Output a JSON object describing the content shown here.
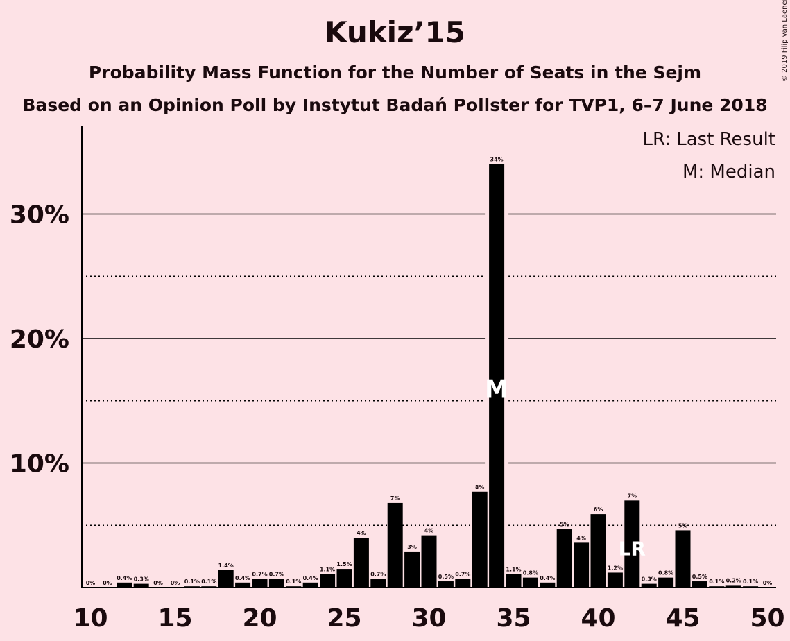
{
  "chart_data": {
    "type": "bar",
    "title": "Kukiz’15",
    "subtitle": "Probability Mass Function for the Number of Seats in the Sejm",
    "subtitle2": "Based on an Opinion Poll by Instytut Badań Pollster for TVP1, 6–7 June 2018",
    "copyright": "© 2019 Filip van Laenen",
    "legend": [
      "LR: Last Result",
      "M: Median"
    ],
    "legend_position": "top-right",
    "x": [
      10,
      11,
      12,
      13,
      14,
      15,
      16,
      17,
      18,
      19,
      20,
      21,
      22,
      23,
      24,
      25,
      26,
      27,
      28,
      29,
      30,
      31,
      32,
      33,
      34,
      35,
      36,
      37,
      38,
      39,
      40,
      41,
      42,
      43,
      44,
      45,
      46,
      47,
      48,
      49,
      50
    ],
    "values": [
      0,
      0,
      0.4,
      0.3,
      0,
      0,
      0.1,
      0.1,
      1.4,
      0.4,
      0.7,
      0.7,
      0.1,
      0.4,
      1.1,
      1.5,
      4,
      0.7,
      6.8,
      2.9,
      4.2,
      0.5,
      0.7,
      7.7,
      34,
      1.1,
      0.8,
      0.4,
      4.7,
      3.6,
      5.9,
      1.2,
      7,
      0.3,
      0.8,
      4.6,
      0.5,
      0.1,
      0.2,
      0.1,
      0
    ],
    "labels": [
      "0%",
      "0%",
      "0.4%",
      "0.3%",
      "0%",
      "0%",
      "0.1%",
      "0.1%",
      "1.4%",
      "0.4%",
      "0.7%",
      "0.7%",
      "0.1%",
      "0.4%",
      "1.1%",
      "1.5%",
      "4%",
      "0.7%",
      "7%",
      "3%",
      "4%",
      "0.5%",
      "0.7%",
      "8%",
      "34%",
      "1.1%",
      "0.8%",
      "0.4%",
      "5%",
      "4%",
      "6%",
      "1.2%",
      "7%",
      "0.3%",
      "0.8%",
      "5%",
      "0.5%",
      "0.1%",
      "0.2%",
      "0.1%",
      "0%"
    ],
    "xticks": [
      10,
      15,
      20,
      25,
      30,
      35,
      40,
      45,
      50
    ],
    "ylim": [
      0,
      37
    ],
    "yticks_major": [
      10,
      20,
      30
    ],
    "ytick_labels": [
      "10%",
      "20%",
      "30%"
    ],
    "yticks_minor": [
      5,
      15,
      25
    ],
    "median_seat": 34,
    "median_marker": "M",
    "last_result_seat": 42,
    "last_result_marker": "LR",
    "bar_color": "#000000",
    "background": "#fde2e6"
  }
}
